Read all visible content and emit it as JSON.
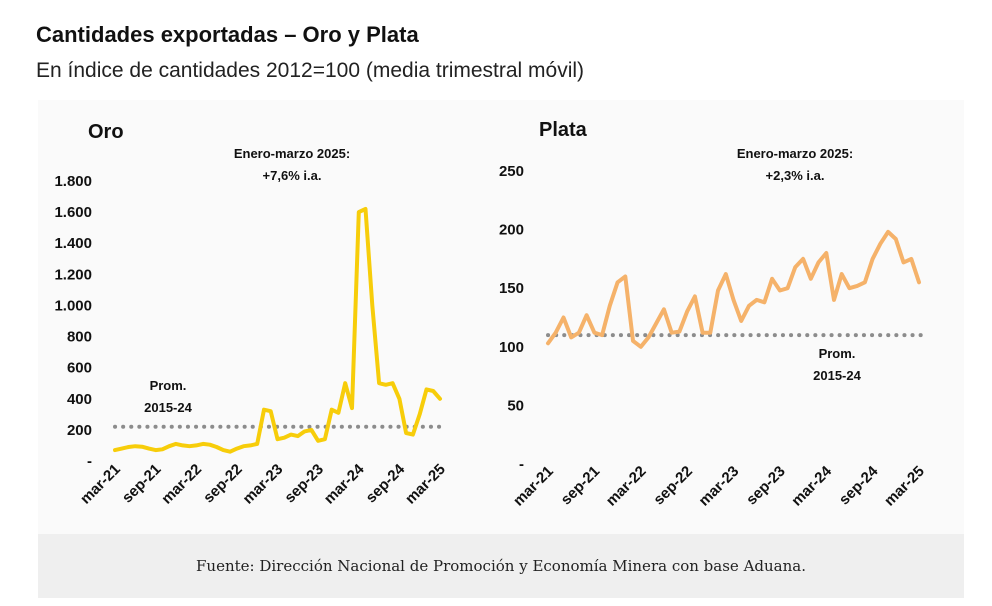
{
  "header": {
    "title": "Cantidades exportadas – Oro y Plata",
    "subtitle": "En índice de cantidades 2012=100 (media trimestral móvil)"
  },
  "footer": {
    "source": "Fuente: Dirección Nacional de Promoción y Economía Minera con base Aduana."
  },
  "chart_data": [
    {
      "type": "line",
      "title": "Oro",
      "color": "#f7cd0a",
      "reference_color": "#8c8c8c",
      "ylim": [
        0,
        1800
      ],
      "yticks": [
        0,
        200,
        400,
        600,
        800,
        1000,
        1200,
        1400,
        1600,
        1800
      ],
      "ytick_labels": [
        "-",
        "200",
        "400",
        "600",
        "800",
        "1.000",
        "1.200",
        "1.400",
        "1.600",
        "1.800"
      ],
      "xtick_labels": [
        "mar-21",
        "sep-21",
        "mar-22",
        "sep-22",
        "mar-23",
        "sep-23",
        "mar-24",
        "sep-24",
        "mar-25"
      ],
      "x": [
        "mar-21",
        "abr-21",
        "may-21",
        "jun-21",
        "jul-21",
        "ago-21",
        "sep-21",
        "oct-21",
        "nov-21",
        "dic-21",
        "ene-22",
        "feb-22",
        "mar-22",
        "abr-22",
        "may-22",
        "jun-22",
        "jul-22",
        "ago-22",
        "sep-22",
        "oct-22",
        "nov-22",
        "dic-22",
        "ene-23",
        "feb-23",
        "mar-23",
        "abr-23",
        "may-23",
        "jun-23",
        "jul-23",
        "ago-23",
        "sep-23",
        "oct-23",
        "nov-23",
        "dic-23",
        "ene-24",
        "feb-24",
        "mar-24",
        "abr-24",
        "may-24",
        "jun-24",
        "jul-24",
        "ago-24",
        "sep-24",
        "oct-24",
        "nov-24",
        "dic-24",
        "ene-25",
        "feb-25",
        "mar-25"
      ],
      "series": [
        {
          "values": [
            70,
            80,
            90,
            95,
            92,
            80,
            70,
            75,
            95,
            110,
            100,
            95,
            100,
            110,
            105,
            90,
            70,
            60,
            80,
            95,
            100,
            110,
            330,
            320,
            140,
            150,
            170,
            160,
            190,
            200,
            130,
            140,
            330,
            310,
            500,
            340,
            1600,
            1620,
            1000,
            500,
            490,
            500,
            400,
            180,
            170,
            300,
            460,
            450,
            400
          ]
        }
      ],
      "reference": {
        "value": 220,
        "label": "Prom.\n2015-24"
      },
      "annotation": "Enero-marzo 2025:\n+7,6% i.a."
    },
    {
      "type": "line",
      "title": "Plata",
      "color": "#f5b26a",
      "reference_color": "#8c8c8c",
      "ylim": [
        0,
        250
      ],
      "yticks": [
        0,
        50,
        100,
        150,
        200,
        250
      ],
      "ytick_labels": [
        "-",
        "50",
        "100",
        "150",
        "200",
        "250"
      ],
      "xtick_labels": [
        "mar-21",
        "sep-21",
        "mar-22",
        "sep-22",
        "mar-23",
        "sep-23",
        "mar-24",
        "sep-24",
        "mar-25"
      ],
      "x": [
        "mar-21",
        "abr-21",
        "may-21",
        "jun-21",
        "jul-21",
        "ago-21",
        "sep-21",
        "oct-21",
        "nov-21",
        "dic-21",
        "ene-22",
        "feb-22",
        "mar-22",
        "abr-22",
        "may-22",
        "jun-22",
        "jul-22",
        "ago-22",
        "sep-22",
        "oct-22",
        "nov-22",
        "dic-22",
        "ene-23",
        "feb-23",
        "mar-23",
        "abr-23",
        "may-23",
        "jun-23",
        "jul-23",
        "ago-23",
        "sep-23",
        "oct-23",
        "nov-23",
        "dic-23",
        "ene-24",
        "feb-24",
        "mar-24",
        "abr-24",
        "may-24",
        "jun-24",
        "jul-24",
        "ago-24",
        "sep-24",
        "oct-24",
        "nov-24",
        "dic-24",
        "ene-25",
        "feb-25",
        "mar-25"
      ],
      "series": [
        {
          "values": [
            103,
            112,
            125,
            108,
            112,
            127,
            112,
            110,
            135,
            155,
            160,
            105,
            100,
            108,
            120,
            132,
            112,
            113,
            130,
            143,
            112,
            112,
            148,
            162,
            140,
            122,
            135,
            140,
            138,
            158,
            148,
            150,
            168,
            175,
            158,
            172,
            180,
            140,
            162,
            150,
            152,
            155,
            175,
            188,
            198,
            192,
            172,
            175,
            155
          ]
        }
      ],
      "reference": {
        "value": 110,
        "label": "Prom.\n2015-24"
      },
      "annotation": "Enero-marzo 2025:\n+2,3% i.a."
    }
  ]
}
